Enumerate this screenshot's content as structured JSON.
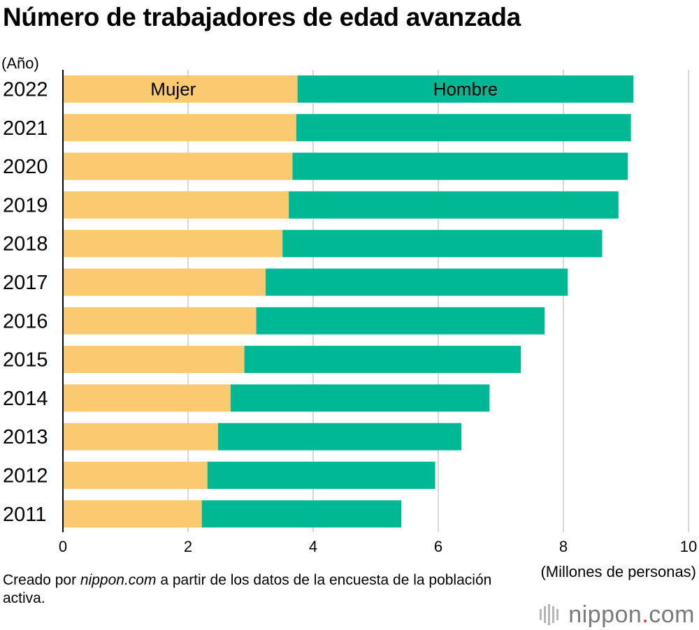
{
  "title": "Número de trabajadores de edad avanzada",
  "chart_data": {
    "type": "bar",
    "orientation": "horizontal",
    "stacked": true,
    "title": "Número de trabajadores de edad avanzada",
    "ylabel": "(Año)",
    "xlabel": "(Millones de personas)",
    "categories": [
      "2022",
      "2021",
      "2020",
      "2019",
      "2018",
      "2017",
      "2016",
      "2015",
      "2014",
      "2013",
      "2012",
      "2011"
    ],
    "series": [
      {
        "name": "Mujer",
        "color": "#fbc96f",
        "values": [
          3.75,
          3.73,
          3.67,
          3.61,
          3.51,
          3.24,
          3.09,
          2.9,
          2.68,
          2.48,
          2.31,
          2.22
        ]
      },
      {
        "name": "Hombre",
        "color": "#00b894",
        "values": [
          5.37,
          5.35,
          5.36,
          5.27,
          5.11,
          4.83,
          4.61,
          4.42,
          4.14,
          3.89,
          3.64,
          3.19
        ]
      }
    ],
    "xlim": [
      0,
      10
    ],
    "xticks": [
      0,
      2,
      4,
      6,
      8,
      10
    ],
    "grid": true,
    "legend": "inside-first-bar"
  },
  "footer": {
    "source_prefix": "Creado por ",
    "source_site": "nippon.com",
    "source_suffix": " a partir de los datos de la encuesta de la población activa."
  },
  "logo": {
    "text_main": "nippon",
    "text_dot": ".",
    "text_tld": "com"
  },
  "colors": {
    "grid": "#cccccc",
    "axis": "#000000"
  }
}
